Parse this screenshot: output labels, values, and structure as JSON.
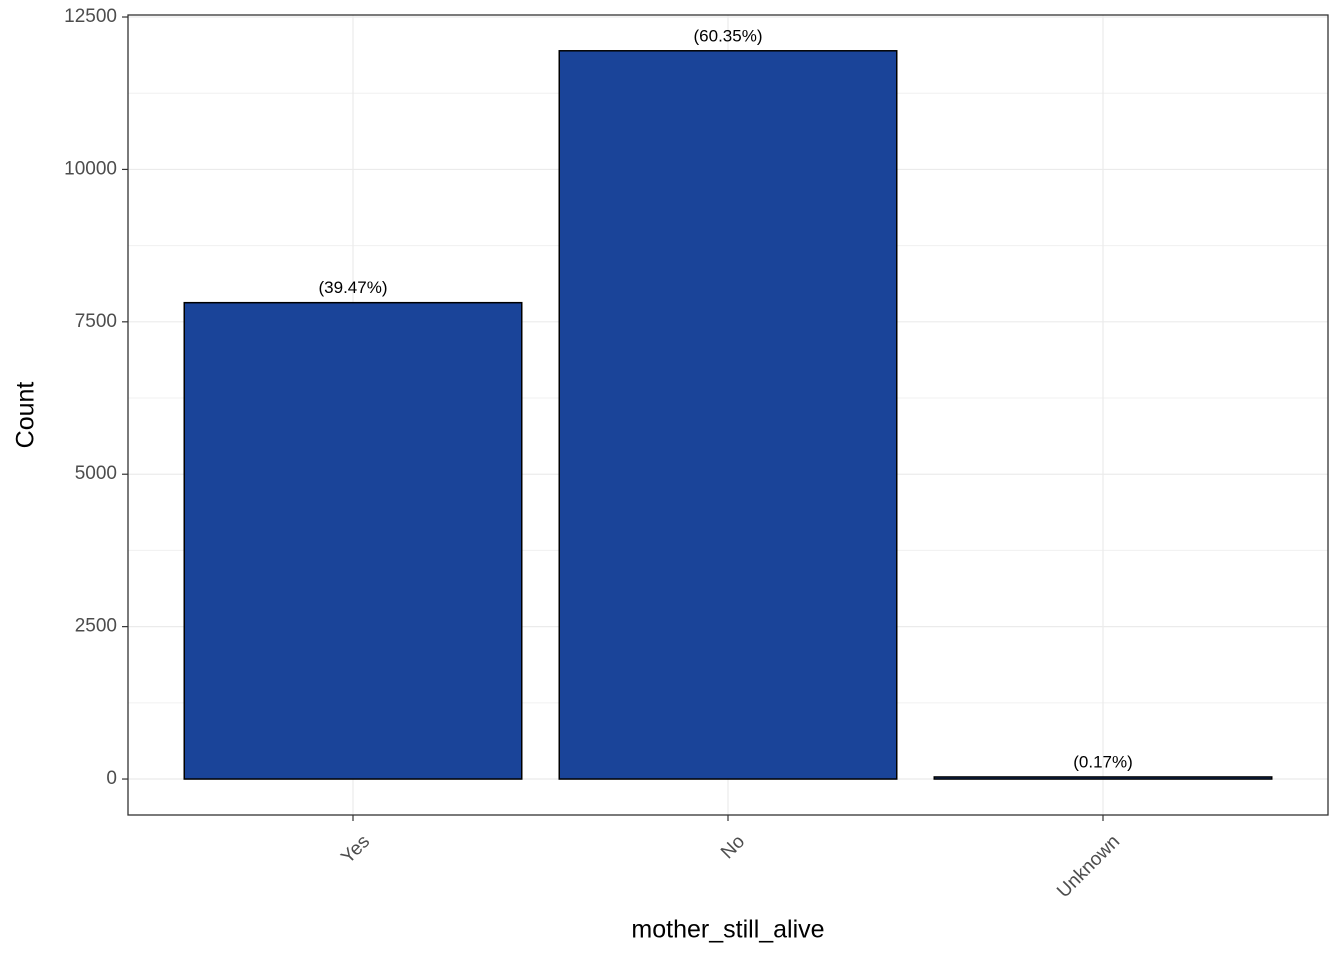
{
  "chart_data": {
    "type": "bar",
    "x_label": "mother_still_alive",
    "y_label": "Count",
    "categories": [
      "Yes",
      "No",
      "Unknown"
    ],
    "values": [
      7814,
      11946,
      34
    ],
    "percents": [
      39.47,
      60.35,
      0.17
    ],
    "percent_labels": [
      "(39.47%)",
      "(60.35%)",
      "(0.17%)"
    ],
    "color": "#1a4499",
    "ylim": [
      -590,
      12533
    ],
    "yticks": [
      0,
      2500,
      5000,
      7500,
      10000,
      12500
    ],
    "grid": true
  }
}
